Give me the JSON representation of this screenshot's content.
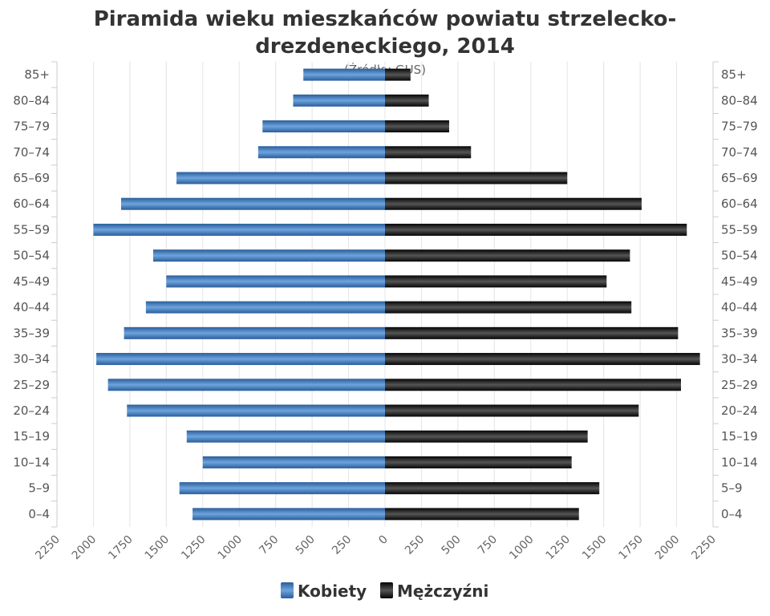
{
  "title_lines": [
    "Piramida wieku mieszkańców powiatu strzelecko-",
    "drezdeneckiego, 2014"
  ],
  "subtitle": "(Źródło: GUS)",
  "colors": {
    "kobiety_light": "#6ea4dd",
    "kobiety_dark": "#2a5d9a",
    "mezczyzni_light": "#555555",
    "mezczyzni_dark": "#050505",
    "grid": "#e4e4e4",
    "axis": "#cccccc"
  },
  "chart_data": {
    "type": "bar",
    "orientation": "horizontal",
    "layout": "population-pyramid",
    "categories": [
      "85+",
      "80-84",
      "75-79",
      "70-74",
      "65-69",
      "60-64",
      "55-59",
      "50-54",
      "45-49",
      "40-44",
      "35-39",
      "30-34",
      "25-29",
      "20-24",
      "15-19",
      "10-14",
      "5-9",
      "0-4"
    ],
    "series": [
      {
        "name": "Kobiety",
        "side": "left",
        "values": [
          560,
          630,
          840,
          870,
          1430,
          1810,
          2000,
          1590,
          1500,
          1640,
          1790,
          1980,
          1900,
          1770,
          1360,
          1250,
          1410,
          1320
        ]
      },
      {
        "name": "Mężczyźni",
        "side": "right",
        "values": [
          175,
          300,
          440,
          590,
          1250,
          1760,
          2070,
          1680,
          1520,
          1690,
          2010,
          2160,
          2030,
          1740,
          1390,
          1280,
          1470,
          1330
        ]
      }
    ],
    "x_ticks": [
      2250,
      2000,
      1750,
      1500,
      1250,
      1000,
      750,
      500,
      250,
      0,
      250,
      500,
      750,
      1000,
      1250,
      1500,
      1750,
      2000,
      2250
    ],
    "xlim": [
      -2250,
      2250
    ],
    "grid": true,
    "legend": "bottom-center"
  }
}
